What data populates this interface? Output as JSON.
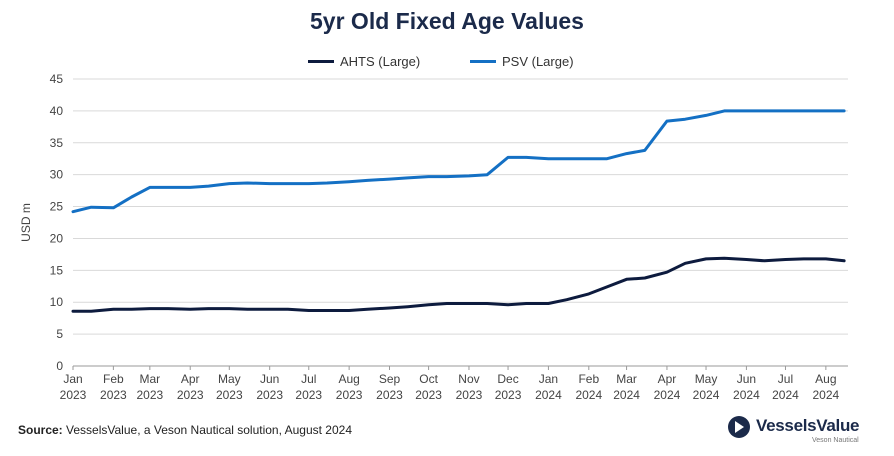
{
  "chart_data": {
    "type": "line",
    "title": "5yr Old Fixed Age Values",
    "ylabel": "USD m",
    "xlabel": "",
    "ylim": [
      0,
      45
    ],
    "yticks": [
      0,
      5,
      10,
      15,
      20,
      25,
      30,
      35,
      40,
      45
    ],
    "grid": true,
    "legend_position": "top-center",
    "xticks": [
      {
        "month": "Jan",
        "year": "2023"
      },
      {
        "month": "Feb",
        "year": "2023"
      },
      {
        "month": "Mar",
        "year": "2023"
      },
      {
        "month": "Apr",
        "year": "2023"
      },
      {
        "month": "May",
        "year": "2023"
      },
      {
        "month": "Jun",
        "year": "2023"
      },
      {
        "month": "Jul",
        "year": "2023"
      },
      {
        "month": "Aug",
        "year": "2023"
      },
      {
        "month": "Sep",
        "year": "2023"
      },
      {
        "month": "Oct",
        "year": "2023"
      },
      {
        "month": "Nov",
        "year": "2023"
      },
      {
        "month": "Dec",
        "year": "2023"
      },
      {
        "month": "Jan",
        "year": "2024"
      },
      {
        "month": "Feb",
        "year": "2024"
      },
      {
        "month": "Mar",
        "year": "2024"
      },
      {
        "month": "Apr",
        "year": "2024"
      },
      {
        "month": "May",
        "year": "2024"
      },
      {
        "month": "Jun",
        "year": "2024"
      },
      {
        "month": "Jul",
        "year": "2024"
      },
      {
        "month": "Aug",
        "year": "2024"
      }
    ],
    "series": [
      {
        "name": "AHTS (Large)",
        "color": "#0d1b3e",
        "points": [
          [
            "2023-01-01",
            8.6
          ],
          [
            "2023-01-15",
            8.6
          ],
          [
            "2023-02-01",
            8.9
          ],
          [
            "2023-02-15",
            8.9
          ],
          [
            "2023-03-01",
            9.0
          ],
          [
            "2023-03-15",
            9.0
          ],
          [
            "2023-04-01",
            8.9
          ],
          [
            "2023-04-15",
            9.0
          ],
          [
            "2023-05-01",
            9.0
          ],
          [
            "2023-05-15",
            8.9
          ],
          [
            "2023-06-01",
            8.9
          ],
          [
            "2023-06-15",
            8.9
          ],
          [
            "2023-07-01",
            8.7
          ],
          [
            "2023-07-15",
            8.7
          ],
          [
            "2023-08-01",
            8.7
          ],
          [
            "2023-08-15",
            8.9
          ],
          [
            "2023-09-01",
            9.1
          ],
          [
            "2023-09-15",
            9.3
          ],
          [
            "2023-10-01",
            9.6
          ],
          [
            "2023-10-15",
            9.8
          ],
          [
            "2023-11-01",
            9.8
          ],
          [
            "2023-11-15",
            9.8
          ],
          [
            "2023-12-01",
            9.6
          ],
          [
            "2023-12-15",
            9.8
          ],
          [
            "2024-01-01",
            9.8
          ],
          [
            "2024-01-15",
            10.4
          ],
          [
            "2024-02-01",
            11.3
          ],
          [
            "2024-02-15",
            12.4
          ],
          [
            "2024-03-01",
            13.6
          ],
          [
            "2024-03-15",
            13.8
          ],
          [
            "2024-04-01",
            14.7
          ],
          [
            "2024-04-15",
            16.1
          ],
          [
            "2024-05-01",
            16.8
          ],
          [
            "2024-05-15",
            16.9
          ],
          [
            "2024-06-01",
            16.7
          ],
          [
            "2024-06-15",
            16.5
          ],
          [
            "2024-07-01",
            16.7
          ],
          [
            "2024-07-15",
            16.8
          ],
          [
            "2024-08-01",
            16.8
          ],
          [
            "2024-08-15",
            16.5
          ]
        ]
      },
      {
        "name": "PSV (Large)",
        "color": "#1470c4",
        "points": [
          [
            "2023-01-01",
            24.2
          ],
          [
            "2023-01-15",
            24.9
          ],
          [
            "2023-02-01",
            24.8
          ],
          [
            "2023-02-15",
            26.5
          ],
          [
            "2023-03-01",
            28.0
          ],
          [
            "2023-03-15",
            28.0
          ],
          [
            "2023-04-01",
            28.0
          ],
          [
            "2023-04-15",
            28.2
          ],
          [
            "2023-05-01",
            28.6
          ],
          [
            "2023-05-15",
            28.7
          ],
          [
            "2023-06-01",
            28.6
          ],
          [
            "2023-06-15",
            28.6
          ],
          [
            "2023-07-01",
            28.6
          ],
          [
            "2023-07-15",
            28.7
          ],
          [
            "2023-08-01",
            28.9
          ],
          [
            "2023-08-15",
            29.1
          ],
          [
            "2023-09-01",
            29.3
          ],
          [
            "2023-09-15",
            29.5
          ],
          [
            "2023-10-01",
            29.7
          ],
          [
            "2023-10-15",
            29.7
          ],
          [
            "2023-11-01",
            29.8
          ],
          [
            "2023-11-15",
            30.0
          ],
          [
            "2023-12-01",
            32.7
          ],
          [
            "2023-12-15",
            32.7
          ],
          [
            "2024-01-01",
            32.5
          ],
          [
            "2024-01-15",
            32.5
          ],
          [
            "2024-02-01",
            32.5
          ],
          [
            "2024-02-15",
            32.5
          ],
          [
            "2024-03-01",
            33.3
          ],
          [
            "2024-03-15",
            33.8
          ],
          [
            "2024-04-01",
            38.4
          ],
          [
            "2024-04-15",
            38.7
          ],
          [
            "2024-05-01",
            39.3
          ],
          [
            "2024-05-15",
            40.0
          ],
          [
            "2024-06-01",
            40.0
          ],
          [
            "2024-06-15",
            40.0
          ],
          [
            "2024-07-01",
            40.0
          ],
          [
            "2024-07-15",
            40.0
          ],
          [
            "2024-08-01",
            40.0
          ],
          [
            "2024-08-15",
            40.0
          ]
        ]
      }
    ]
  },
  "footer": {
    "source_label": "Source:",
    "source_text": "VesselsValue, a Veson Nautical solution, August 2024"
  },
  "brand": {
    "name": "VesselsValue",
    "sub": "Veson Nautical"
  }
}
